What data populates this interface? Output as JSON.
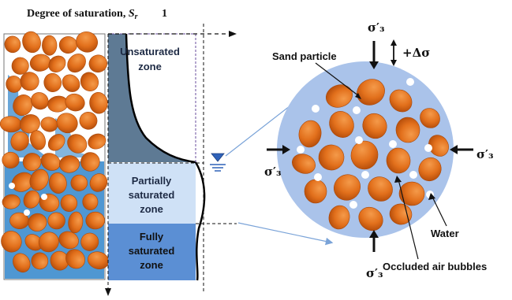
{
  "header": {
    "title": "Degree  of saturation, ",
    "symbol": "S",
    "subscript": "r",
    "value": "1"
  },
  "zones": {
    "unsaturated_line1": "Unsaturated",
    "unsaturated_line2": "zone",
    "partial_line1": "Partially",
    "partial_line2": "saturated",
    "partial_line3": "zone",
    "full_line1": "Fully",
    "full_line2": "saturated",
    "full_line3": "zone"
  },
  "labels": {
    "sand_particle": "Sand particle",
    "water": "Water",
    "occluded_air": "Occluded air bubbles",
    "sigma3": "σ′₃",
    "delta_sigma": "+Δσ"
  },
  "colors": {
    "sand": "#e2701c",
    "sand_dark": "#c4560e",
    "water": "#4f97d2",
    "water_light": "#b3cef0",
    "partial_zone": "#cfe1f6",
    "full_zone": "#5b8fd4",
    "unsat_fill": "#5e7a94",
    "circle_bg": "#aac3ea",
    "arrow_blue": "#7aa3d8"
  }
}
